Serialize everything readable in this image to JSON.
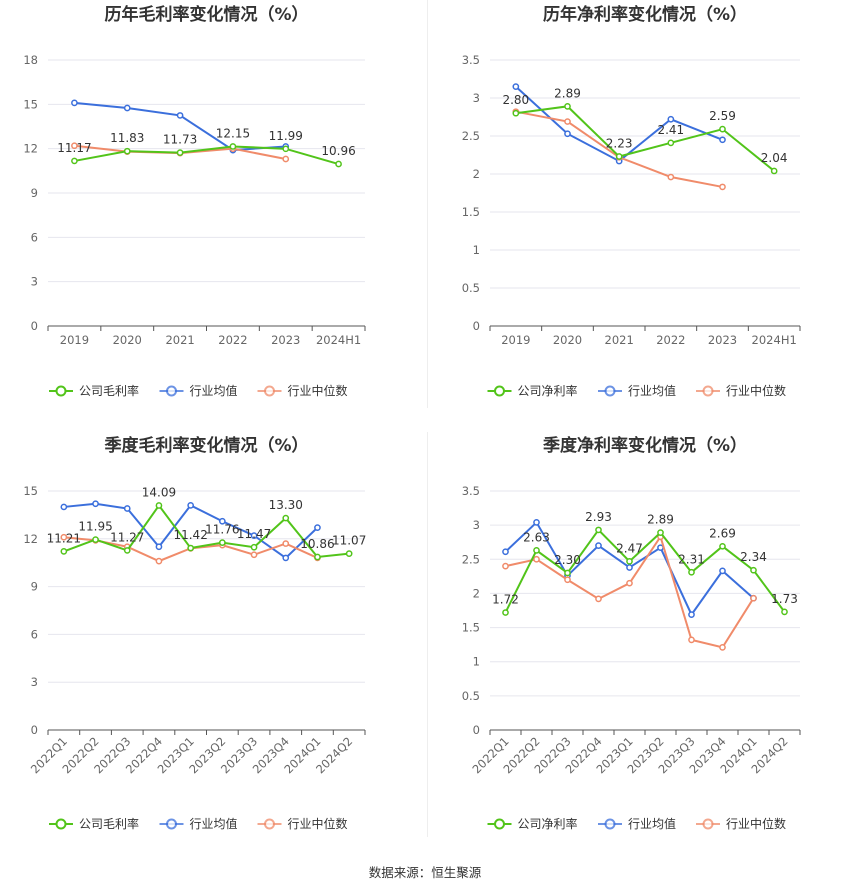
{
  "source": "数据来源：恒生聚源",
  "chart_data": [
    {
      "type": "line",
      "title": "历年毛利率变化情况（%）",
      "categories": [
        "2019",
        "2020",
        "2021",
        "2022",
        "2023",
        "2024H1"
      ],
      "yticks": [
        "0",
        "3",
        "6",
        "9",
        "12",
        "15",
        "18"
      ],
      "ylim": [
        0,
        18
      ],
      "rotate_x": false,
      "series": [
        {
          "name": "公司毛利率",
          "color": "#52c41a",
          "values": [
            11.17,
            11.83,
            11.73,
            12.15,
            11.99,
            10.96
          ],
          "labels": [
            "11.17",
            "11.83",
            "11.73",
            "12.15",
            "11.99",
            "10.96"
          ]
        },
        {
          "name": "行业均值",
          "color": "#3b6fdc",
          "values": [
            15.1,
            14.75,
            14.25,
            11.9,
            12.15,
            null
          ],
          "labels": []
        },
        {
          "name": "行业中位数",
          "color": "#f08b6a",
          "values": [
            12.2,
            11.8,
            11.7,
            12.0,
            11.3,
            null
          ],
          "labels": []
        }
      ],
      "legend": "bottom"
    },
    {
      "type": "line",
      "title": "历年净利率变化情况（%）",
      "categories": [
        "2019",
        "2020",
        "2021",
        "2022",
        "2023",
        "2024H1"
      ],
      "yticks": [
        "0",
        "0.5",
        "1",
        "1.5",
        "2",
        "2.5",
        "3",
        "3.5"
      ],
      "ylim": [
        0,
        3.5
      ],
      "rotate_x": false,
      "series": [
        {
          "name": "公司净利率",
          "color": "#52c41a",
          "values": [
            2.8,
            2.89,
            2.23,
            2.41,
            2.59,
            2.04
          ],
          "labels": [
            "2.80",
            "2.89",
            "2.23",
            "2.41",
            "2.59",
            "2.04"
          ]
        },
        {
          "name": "行业均值",
          "color": "#3b6fdc",
          "values": [
            3.15,
            2.53,
            2.17,
            2.72,
            2.45,
            null
          ],
          "labels": []
        },
        {
          "name": "行业中位数",
          "color": "#f08b6a",
          "values": [
            2.82,
            2.69,
            2.22,
            1.96,
            1.83,
            null
          ],
          "labels": []
        }
      ],
      "legend": "bottom"
    },
    {
      "type": "line",
      "title": "季度毛利率变化情况（%）",
      "categories": [
        "2022Q1",
        "2022Q2",
        "2022Q3",
        "2022Q4",
        "2023Q1",
        "2023Q2",
        "2023Q3",
        "2023Q4",
        "2024Q1",
        "2024Q2"
      ],
      "yticks": [
        "0",
        "3",
        "6",
        "9",
        "12",
        "15"
      ],
      "ylim": [
        0,
        15
      ],
      "rotate_x": true,
      "series": [
        {
          "name": "公司毛利率",
          "color": "#52c41a",
          "values": [
            11.21,
            11.95,
            11.27,
            14.09,
            11.42,
            11.76,
            11.47,
            13.3,
            10.86,
            11.07
          ],
          "labels": [
            "11.21",
            "11.95",
            "11.27",
            "14.09",
            "11.42",
            "11.76",
            "11.47",
            "13.30",
            "10.86",
            "11.07"
          ]
        },
        {
          "name": "行业均值",
          "color": "#3b6fdc",
          "values": [
            14.0,
            14.2,
            13.9,
            11.5,
            14.1,
            13.1,
            12.2,
            10.8,
            12.7,
            null
          ],
          "labels": []
        },
        {
          "name": "行业中位数",
          "color": "#f08b6a",
          "values": [
            12.1,
            11.9,
            11.5,
            10.6,
            11.4,
            11.6,
            11.0,
            11.7,
            10.8,
            null
          ],
          "labels": []
        }
      ],
      "legend": "bottom"
    },
    {
      "type": "line",
      "title": "季度净利率变化情况（%）",
      "categories": [
        "2022Q1",
        "2022Q2",
        "2022Q3",
        "2022Q4",
        "2023Q1",
        "2023Q2",
        "2023Q3",
        "2023Q4",
        "2024Q1",
        "2024Q2"
      ],
      "yticks": [
        "0",
        "0.5",
        "1",
        "1.5",
        "2",
        "2.5",
        "3",
        "3.5"
      ],
      "ylim": [
        0,
        3.5
      ],
      "rotate_x": true,
      "series": [
        {
          "name": "公司净利率",
          "color": "#52c41a",
          "values": [
            1.72,
            2.63,
            2.3,
            2.93,
            2.47,
            2.89,
            2.31,
            2.69,
            2.34,
            1.73
          ],
          "labels": [
            "1.72",
            "2.63",
            "2.30",
            "2.93",
            "2.47",
            "2.89",
            "2.31",
            "2.69",
            "2.34",
            "1.73"
          ]
        },
        {
          "name": "行业均值",
          "color": "#3b6fdc",
          "values": [
            2.61,
            3.04,
            2.26,
            2.7,
            2.38,
            2.67,
            1.69,
            2.33,
            1.93,
            null
          ],
          "labels": []
        },
        {
          "name": "行业中位数",
          "color": "#f08b6a",
          "values": [
            2.4,
            2.5,
            2.2,
            1.92,
            2.15,
            2.83,
            1.32,
            1.21,
            1.93,
            null
          ],
          "labels": []
        }
      ],
      "legend": "bottom"
    }
  ]
}
